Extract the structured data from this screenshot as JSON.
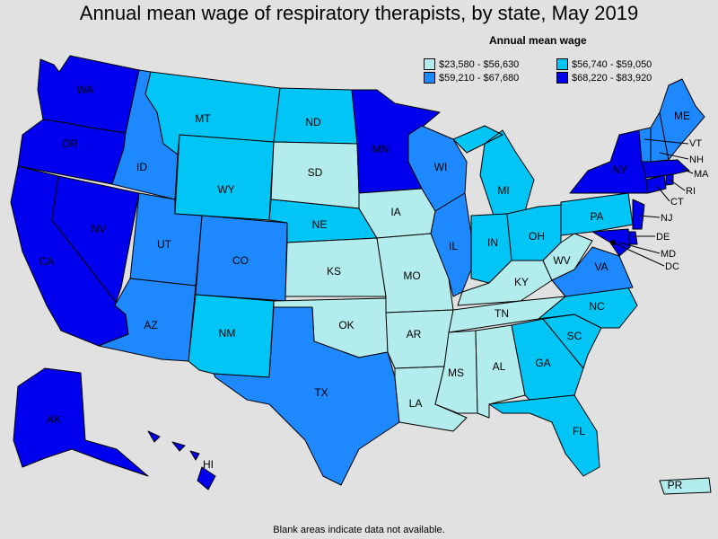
{
  "title": "Annual mean wage of respiratory therapists, by state, May 2019",
  "legend": {
    "title": "Annual mean wage",
    "items": [
      {
        "label": "$23,580 - $56,630",
        "color": "#b3ecec"
      },
      {
        "label": "$56,740 - $59,050",
        "color": "#00c5f5"
      },
      {
        "label": "$59,210 - $67,680",
        "color": "#1e88ff"
      },
      {
        "label": "$68,220 - $83,920",
        "color": "#0000ee"
      }
    ]
  },
  "footnote": "Blank areas indicate data not available.",
  "states": {
    "WA": {
      "label": "WA",
      "tier": 3
    },
    "OR": {
      "label": "OR",
      "tier": 3
    },
    "CA": {
      "label": "CA",
      "tier": 3
    },
    "NV": {
      "label": "NV",
      "tier": 3
    },
    "ID": {
      "label": "ID",
      "tier": 2
    },
    "MT": {
      "label": "MT",
      "tier": 1
    },
    "WY": {
      "label": "WY",
      "tier": 1
    },
    "UT": {
      "label": "UT",
      "tier": 2
    },
    "AZ": {
      "label": "AZ",
      "tier": 2
    },
    "CO": {
      "label": "CO",
      "tier": 2
    },
    "NM": {
      "label": "NM",
      "tier": 1
    },
    "ND": {
      "label": "ND",
      "tier": 1
    },
    "SD": {
      "label": "SD",
      "tier": 0
    },
    "NE": {
      "label": "NE",
      "tier": 1
    },
    "KS": {
      "label": "KS",
      "tier": 0
    },
    "OK": {
      "label": "OK",
      "tier": 0
    },
    "TX": {
      "label": "TX",
      "tier": 2
    },
    "MN": {
      "label": "MN",
      "tier": 3
    },
    "IA": {
      "label": "IA",
      "tier": 0
    },
    "MO": {
      "label": "MO",
      "tier": 0
    },
    "AR": {
      "label": "AR",
      "tier": 0
    },
    "LA": {
      "label": "LA",
      "tier": 0
    },
    "WI": {
      "label": "WI",
      "tier": 2
    },
    "IL": {
      "label": "IL",
      "tier": 2
    },
    "MI": {
      "label": "MI",
      "tier": 1
    },
    "IN": {
      "label": "IN",
      "tier": 1
    },
    "OH": {
      "label": "OH",
      "tier": 1
    },
    "KY": {
      "label": "KY",
      "tier": 0
    },
    "TN": {
      "label": "TN",
      "tier": 0
    },
    "MS": {
      "label": "MS",
      "tier": 0
    },
    "AL": {
      "label": "AL",
      "tier": 0
    },
    "GA": {
      "label": "GA",
      "tier": 1
    },
    "FL": {
      "label": "FL",
      "tier": 1
    },
    "SC": {
      "label": "SC",
      "tier": 1
    },
    "NC": {
      "label": "NC",
      "tier": 1
    },
    "VA": {
      "label": "VA",
      "tier": 2
    },
    "WV": {
      "label": "WV",
      "tier": 0
    },
    "PA": {
      "label": "PA",
      "tier": 1
    },
    "NY": {
      "label": "NY",
      "tier": 3
    },
    "NJ": {
      "label": "NJ",
      "tier": 3
    },
    "DE": {
      "label": "DE",
      "tier": 3
    },
    "MD": {
      "label": "MD",
      "tier": 3
    },
    "DC": {
      "label": "DC",
      "tier": 3
    },
    "CT": {
      "label": "CT",
      "tier": 3
    },
    "RI": {
      "label": "RI",
      "tier": 3
    },
    "MA": {
      "label": "MA",
      "tier": 3
    },
    "VT": {
      "label": "VT",
      "tier": 2
    },
    "NH": {
      "label": "NH",
      "tier": 2
    },
    "ME": {
      "label": "ME",
      "tier": 2
    },
    "AK": {
      "label": "AK",
      "tier": 3
    },
    "HI": {
      "label": "HI",
      "tier": 3
    },
    "PR": {
      "label": "PR",
      "tier": 0
    }
  }
}
